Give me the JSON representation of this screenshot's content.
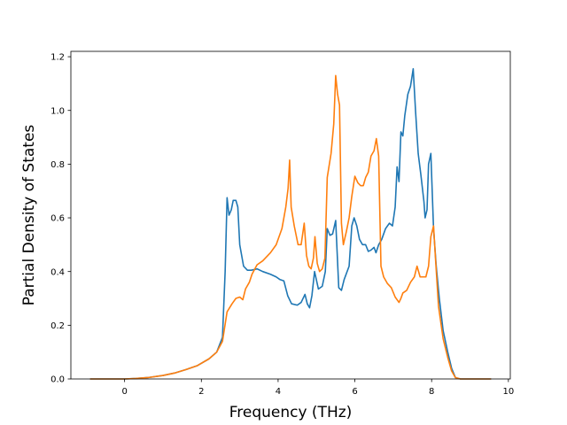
{
  "chart_data": {
    "type": "line",
    "title": "",
    "xlabel": "Frequency (THz)",
    "ylabel": "Partial Density of States",
    "xlim": [
      -1.4,
      10.05
    ],
    "ylim": [
      0,
      1.22
    ],
    "xticks": [
      "0",
      "2",
      "4",
      "6",
      "8",
      "10"
    ],
    "yticks": [
      "0.0",
      "0.2",
      "0.4",
      "0.6",
      "0.8",
      "1.0",
      "1.2"
    ],
    "grid": false,
    "legend": "none",
    "colors": {
      "series1": "#1f77b4",
      "series2": "#ff7f0e"
    },
    "series": [
      {
        "color": "#1f77b4",
        "points": [
          [
            -0.9,
            0.0
          ],
          [
            0.0,
            0.0
          ],
          [
            0.3,
            0.002
          ],
          [
            0.6,
            0.005
          ],
          [
            1.0,
            0.013
          ],
          [
            1.3,
            0.022
          ],
          [
            1.6,
            0.035
          ],
          [
            1.9,
            0.05
          ],
          [
            2.2,
            0.075
          ],
          [
            2.4,
            0.1
          ],
          [
            2.55,
            0.155
          ],
          [
            2.62,
            0.4
          ],
          [
            2.67,
            0.675
          ],
          [
            2.72,
            0.61
          ],
          [
            2.78,
            0.63
          ],
          [
            2.83,
            0.665
          ],
          [
            2.9,
            0.665
          ],
          [
            2.95,
            0.64
          ],
          [
            3.0,
            0.5
          ],
          [
            3.1,
            0.42
          ],
          [
            3.2,
            0.405
          ],
          [
            3.3,
            0.405
          ],
          [
            3.45,
            0.41
          ],
          [
            3.6,
            0.4
          ],
          [
            3.8,
            0.39
          ],
          [
            3.95,
            0.38
          ],
          [
            4.05,
            0.37
          ],
          [
            4.15,
            0.365
          ],
          [
            4.25,
            0.31
          ],
          [
            4.35,
            0.28
          ],
          [
            4.5,
            0.275
          ],
          [
            4.6,
            0.285
          ],
          [
            4.7,
            0.315
          ],
          [
            4.76,
            0.28
          ],
          [
            4.82,
            0.265
          ],
          [
            4.88,
            0.31
          ],
          [
            4.95,
            0.4
          ],
          [
            5.05,
            0.335
          ],
          [
            5.15,
            0.345
          ],
          [
            5.23,
            0.4
          ],
          [
            5.28,
            0.56
          ],
          [
            5.35,
            0.535
          ],
          [
            5.42,
            0.54
          ],
          [
            5.5,
            0.59
          ],
          [
            5.58,
            0.34
          ],
          [
            5.65,
            0.33
          ],
          [
            5.72,
            0.37
          ],
          [
            5.85,
            0.42
          ],
          [
            5.92,
            0.57
          ],
          [
            5.98,
            0.6
          ],
          [
            6.05,
            0.57
          ],
          [
            6.12,
            0.52
          ],
          [
            6.2,
            0.5
          ],
          [
            6.28,
            0.5
          ],
          [
            6.35,
            0.475
          ],
          [
            6.42,
            0.48
          ],
          [
            6.5,
            0.49
          ],
          [
            6.55,
            0.47
          ],
          [
            6.62,
            0.5
          ],
          [
            6.7,
            0.52
          ],
          [
            6.8,
            0.56
          ],
          [
            6.9,
            0.58
          ],
          [
            6.98,
            0.57
          ],
          [
            7.05,
            0.64
          ],
          [
            7.1,
            0.79
          ],
          [
            7.15,
            0.735
          ],
          [
            7.2,
            0.92
          ],
          [
            7.25,
            0.905
          ],
          [
            7.3,
            0.98
          ],
          [
            7.38,
            1.06
          ],
          [
            7.45,
            1.09
          ],
          [
            7.52,
            1.155
          ],
          [
            7.58,
            1.0
          ],
          [
            7.65,
            0.84
          ],
          [
            7.72,
            0.76
          ],
          [
            7.8,
            0.66
          ],
          [
            7.83,
            0.6
          ],
          [
            7.88,
            0.63
          ],
          [
            7.92,
            0.8
          ],
          [
            7.98,
            0.84
          ],
          [
            8.05,
            0.56
          ],
          [
            8.12,
            0.42
          ],
          [
            8.2,
            0.3
          ],
          [
            8.3,
            0.18
          ],
          [
            8.42,
            0.1
          ],
          [
            8.52,
            0.04
          ],
          [
            8.62,
            0.005
          ],
          [
            8.75,
            0.0
          ],
          [
            9.55,
            0.0
          ]
        ]
      },
      {
        "color": "#ff7f0e",
        "points": [
          [
            -0.9,
            0.0
          ],
          [
            0.0,
            0.0
          ],
          [
            0.3,
            0.002
          ],
          [
            0.6,
            0.005
          ],
          [
            1.0,
            0.013
          ],
          [
            1.3,
            0.022
          ],
          [
            1.6,
            0.035
          ],
          [
            1.9,
            0.05
          ],
          [
            2.2,
            0.075
          ],
          [
            2.4,
            0.1
          ],
          [
            2.55,
            0.14
          ],
          [
            2.67,
            0.25
          ],
          [
            2.8,
            0.28
          ],
          [
            2.9,
            0.3
          ],
          [
            3.0,
            0.305
          ],
          [
            3.08,
            0.295
          ],
          [
            3.15,
            0.335
          ],
          [
            3.25,
            0.36
          ],
          [
            3.32,
            0.39
          ],
          [
            3.45,
            0.425
          ],
          [
            3.6,
            0.44
          ],
          [
            3.8,
            0.47
          ],
          [
            3.95,
            0.5
          ],
          [
            4.1,
            0.56
          ],
          [
            4.2,
            0.64
          ],
          [
            4.26,
            0.71
          ],
          [
            4.3,
            0.815
          ],
          [
            4.34,
            0.64
          ],
          [
            4.42,
            0.57
          ],
          [
            4.52,
            0.5
          ],
          [
            4.6,
            0.5
          ],
          [
            4.68,
            0.58
          ],
          [
            4.74,
            0.46
          ],
          [
            4.8,
            0.42
          ],
          [
            4.86,
            0.41
          ],
          [
            4.92,
            0.45
          ],
          [
            4.96,
            0.53
          ],
          [
            5.02,
            0.43
          ],
          [
            5.08,
            0.4
          ],
          [
            5.15,
            0.41
          ],
          [
            5.22,
            0.45
          ],
          [
            5.28,
            0.75
          ],
          [
            5.38,
            0.84
          ],
          [
            5.45,
            0.95
          ],
          [
            5.5,
            1.13
          ],
          [
            5.55,
            1.06
          ],
          [
            5.6,
            1.02
          ],
          [
            5.65,
            0.58
          ],
          [
            5.7,
            0.5
          ],
          [
            5.78,
            0.55
          ],
          [
            5.85,
            0.6
          ],
          [
            5.92,
            0.68
          ],
          [
            6.0,
            0.755
          ],
          [
            6.08,
            0.73
          ],
          [
            6.15,
            0.72
          ],
          [
            6.22,
            0.72
          ],
          [
            6.28,
            0.75
          ],
          [
            6.35,
            0.77
          ],
          [
            6.42,
            0.83
          ],
          [
            6.5,
            0.85
          ],
          [
            6.56,
            0.895
          ],
          [
            6.62,
            0.83
          ],
          [
            6.68,
            0.42
          ],
          [
            6.75,
            0.38
          ],
          [
            6.85,
            0.355
          ],
          [
            6.95,
            0.34
          ],
          [
            7.05,
            0.305
          ],
          [
            7.15,
            0.285
          ],
          [
            7.2,
            0.3
          ],
          [
            7.25,
            0.32
          ],
          [
            7.35,
            0.33
          ],
          [
            7.45,
            0.36
          ],
          [
            7.55,
            0.38
          ],
          [
            7.62,
            0.42
          ],
          [
            7.7,
            0.38
          ],
          [
            7.78,
            0.38
          ],
          [
            7.85,
            0.38
          ],
          [
            7.92,
            0.42
          ],
          [
            7.98,
            0.53
          ],
          [
            8.05,
            0.57
          ],
          [
            8.1,
            0.45
          ],
          [
            8.18,
            0.27
          ],
          [
            8.3,
            0.15
          ],
          [
            8.42,
            0.08
          ],
          [
            8.52,
            0.03
          ],
          [
            8.62,
            0.005
          ],
          [
            8.75,
            0.0
          ],
          [
            9.55,
            0.0
          ]
        ]
      }
    ]
  }
}
